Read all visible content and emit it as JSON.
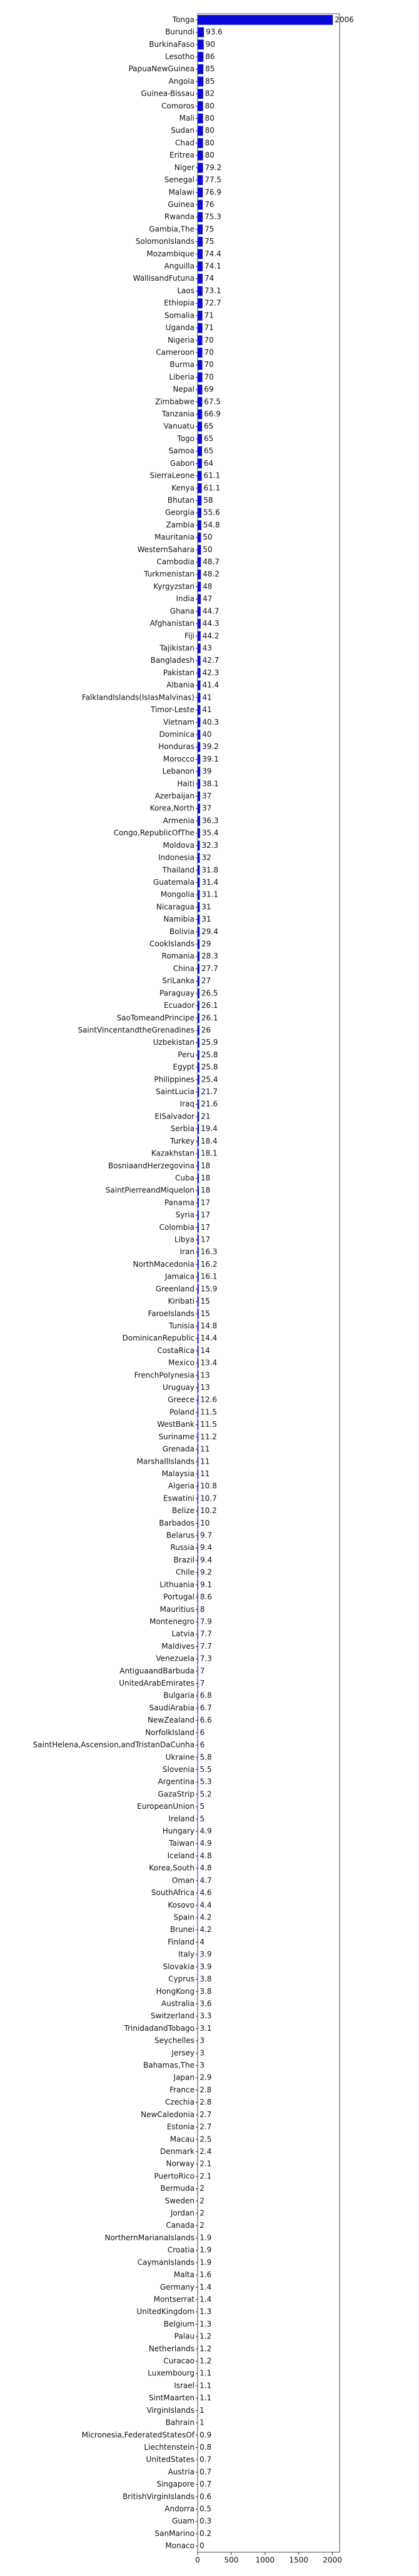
{
  "chart_data": {
    "type": "barh",
    "color": "#0a0ad8",
    "categories": [
      "Tonga",
      "Burundi",
      "BurkinaFaso",
      "Lesotho",
      "PapuaNewGuinea",
      "Angola",
      "Guinea-Bissau",
      "Comoros",
      "Mali",
      "Sudan",
      "Chad",
      "Eritrea",
      "Niger",
      "Senegal",
      "Malawi",
      "Guinea",
      "Rwanda",
      "Gambia,The",
      "SolomonIslands",
      "Mozambique",
      "Anguilla",
      "WallisandFutuna",
      "Laos",
      "Ethiopia",
      "Somalia",
      "Uganda",
      "Nigeria",
      "Cameroon",
      "Burma",
      "Liberia",
      "Nepal",
      "Zimbabwe",
      "Tanzania",
      "Vanuatu",
      "Togo",
      "Samoa",
      "Gabon",
      "SierraLeone",
      "Kenya",
      "Bhutan",
      "Georgia",
      "Zambia",
      "Mauritania",
      "WesternSahara",
      "Cambodia",
      "Turkmenistan",
      "Kyrgyzstan",
      "India",
      "Ghana",
      "Afghanistan",
      "Fiji",
      "Tajikistan",
      "Bangladesh",
      "Pakistan",
      "Albania",
      "FalklandIslands(IslasMalvinas)",
      "Timor-Leste",
      "Vietnam",
      "Dominica",
      "Honduras",
      "Morocco",
      "Lebanon",
      "Haiti",
      "Azerbaijan",
      "Korea,North",
      "Armenia",
      "Congo,RepublicOfThe",
      "Moldova",
      "Indonesia",
      "Thailand",
      "Guatemala",
      "Mongolia",
      "Nicaragua",
      "Namibia",
      "Bolivia",
      "CookIslands",
      "Romania",
      "China",
      "SriLanka",
      "Paraguay",
      "Ecuador",
      "SaoTomeandPrincipe",
      "SaintVincentandtheGrenadines",
      "Uzbekistan",
      "Peru",
      "Egypt",
      "Philippines",
      "SaintLucia",
      "Iraq",
      "ElSalvador",
      "Serbia",
      "Turkey",
      "Kazakhstan",
      "BosniaandHerzegovina",
      "Cuba",
      "SaintPierreandMiquelon",
      "Panama",
      "Syria",
      "Colombia",
      "Libya",
      "Iran",
      "NorthMacedonia",
      "Jamaica",
      "Greenland",
      "Kiribati",
      "FaroeIslands",
      "Tunisia",
      "DominicanRepublic",
      "CostaRica",
      "Mexico",
      "FrenchPolynesia",
      "Uruguay",
      "Greece",
      "Poland",
      "WestBank",
      "Suriname",
      "Grenada",
      "MarshallIslands",
      "Malaysia",
      "Algeria",
      "Eswatini",
      "Belize",
      "Barbados",
      "Belarus",
      "Russia",
      "Brazil",
      "Chile",
      "Lithuania",
      "Portugal",
      "Mauritius",
      "Montenegro",
      "Latvia",
      "Maldives",
      "Venezuela",
      "AntiguaandBarbuda",
      "UnitedArabEmirates",
      "Bulgaria",
      "SaudiArabia",
      "NewZealand",
      "NorfolkIsland",
      "SaintHelena,Ascension,andTristanDaCunha",
      "Ukraine",
      "Slovenia",
      "Argentina",
      "GazaStrip",
      "EuropeanUnion",
      "Ireland",
      "Hungary",
      "Taiwan",
      "Iceland",
      "Korea,South",
      "Oman",
      "SouthAfrica",
      "Kosovo",
      "Spain",
      "Brunei",
      "Finland",
      "Italy",
      "Slovakia",
      "Cyprus",
      "HongKong",
      "Australia",
      "Switzerland",
      "TrinidadandTobago",
      "Seychelles",
      "Jersey",
      "Bahamas,The",
      "Japan",
      "France",
      "Czechia",
      "NewCaledonia",
      "Estonia",
      "Macau",
      "Denmark",
      "Norway",
      "PuertoRico",
      "Bermuda",
      "Sweden",
      "Jordan",
      "Canada",
      "NorthernMarianaIslands",
      "Croatia",
      "CaymanIslands",
      "Malta",
      "Germany",
      "Montserrat",
      "UnitedKingdom",
      "Belgium",
      "Palau",
      "Netherlands",
      "Curacao",
      "Luxembourg",
      "Israel",
      "SintMaarten",
      "VirginIslands",
      "Bahrain",
      "Micronesia,FederatedStatesOf",
      "Liechtenstein",
      "UnitedStates",
      "Austria",
      "Singapore",
      "BritishVirginIslands",
      "Andorra",
      "Guam",
      "SanMarino",
      "Monaco"
    ],
    "values": [
      2006,
      93.6,
      90,
      86,
      85,
      85,
      82,
      80,
      80,
      80,
      80,
      80,
      79.2,
      77.5,
      76.9,
      76,
      75.3,
      75,
      75,
      74.4,
      74.1,
      74,
      73.1,
      72.7,
      71,
      71,
      70,
      70,
      70,
      70,
      69,
      67.5,
      66.9,
      65,
      65,
      65,
      64,
      61.1,
      61.1,
      58,
      55.6,
      54.8,
      50,
      50,
      48.7,
      48.2,
      48,
      47,
      44.7,
      44.3,
      44.2,
      43,
      42.7,
      42.3,
      41.4,
      41,
      41,
      40.3,
      40,
      39.2,
      39.1,
      39,
      38.1,
      37,
      37,
      36.3,
      35.4,
      32.3,
      32,
      31.8,
      31.4,
      31.1,
      31,
      31,
      29.4,
      29,
      28.3,
      27.7,
      27,
      26.5,
      26.1,
      26.1,
      26,
      25.9,
      25.8,
      25.8,
      25.4,
      21.7,
      21.6,
      21,
      19.4,
      18.4,
      18.1,
      18,
      18,
      18,
      17,
      17,
      17,
      17,
      16.3,
      16.2,
      16.1,
      15.9,
      15,
      15,
      14.8,
      14.4,
      14,
      13.4,
      13,
      13,
      12.6,
      11.5,
      11.5,
      11.2,
      11,
      11,
      11,
      10.8,
      10.7,
      10.2,
      10,
      9.7,
      9.4,
      9.4,
      9.2,
      9.1,
      8.6,
      8,
      7.9,
      7.7,
      7.7,
      7.3,
      7,
      7,
      6.8,
      6.7,
      6.6,
      6,
      6,
      5.8,
      5.5,
      5.3,
      5.2,
      5,
      5,
      4.9,
      4.9,
      4.8,
      4.8,
      4.7,
      4.6,
      4.4,
      4.2,
      4.2,
      4,
      3.9,
      3.9,
      3.8,
      3.8,
      3.6,
      3.3,
      3.1,
      3,
      3,
      3,
      2.9,
      2.8,
      2.8,
      2.7,
      2.7,
      2.5,
      2.4,
      2.1,
      2.1,
      2,
      2,
      2,
      2,
      1.9,
      1.9,
      1.9,
      1.6,
      1.4,
      1.4,
      1.3,
      1.3,
      1.2,
      1.2,
      1.2,
      1.1,
      1.1,
      1.1,
      1,
      1,
      0.9,
      0.8,
      0.7,
      0.7,
      0.7,
      0.6,
      0.5,
      0.3,
      0.2,
      0
    ],
    "xlim": [
      0,
      2106
    ],
    "xticks": [
      0,
      500,
      1000,
      1500,
      2000
    ]
  }
}
